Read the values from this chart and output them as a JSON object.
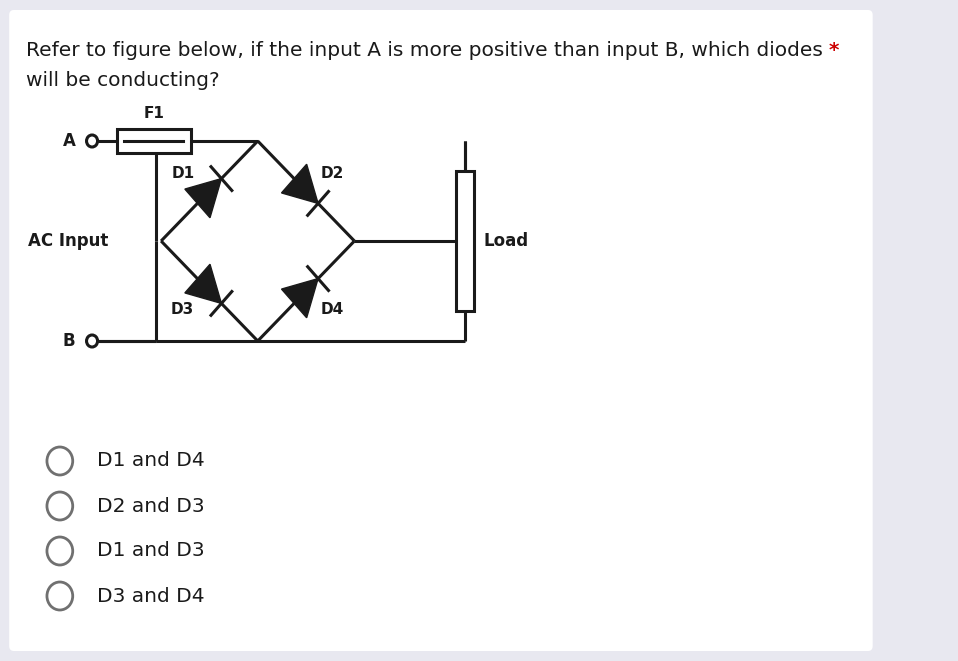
{
  "bg_color": "#ffffff",
  "outer_bg": "#e8e8f0",
  "text_color": "#000000",
  "question_text": "Refer to figure below, if the input A is more positive than input B, which diodes",
  "question_text2": "will be conducting?",
  "asterisk_color": "#cc0000",
  "choices": [
    "D1 and D4",
    "D2 and D3",
    "D1 and D3",
    "D3 and D4"
  ]
}
